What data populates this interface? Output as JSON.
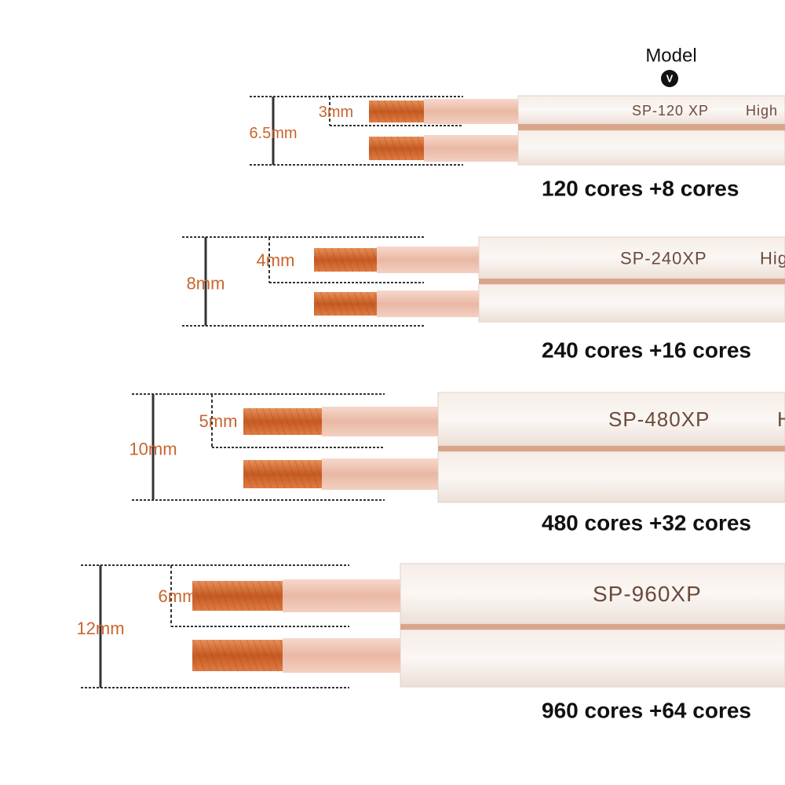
{
  "header": {
    "model_label": "Model",
    "marker": "V"
  },
  "cables": [
    {
      "model": "SP-120 XP",
      "high": "High",
      "inner": "3mm",
      "outer": "6.5mm",
      "cores": "120 cores +8 cores"
    },
    {
      "model": "SP-240XP",
      "high": "Hig",
      "inner": "4mm",
      "outer": "8mm",
      "cores": "240 cores +16 cores"
    },
    {
      "model": "SP-480XP",
      "high": "H",
      "inner": "5mm",
      "outer": "10mm",
      "cores": "480 cores +32 cores"
    },
    {
      "model": "SP-960XP",
      "inner": "6mm",
      "outer": "12mm",
      "cores": "960 cores +64 cores"
    }
  ]
}
